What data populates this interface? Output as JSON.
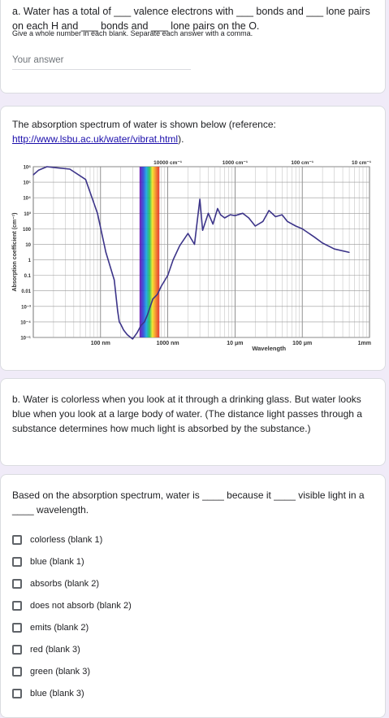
{
  "q1": {
    "title": "a. Water has a total of ___ valence electrons with ___ bonds and ___ lone pairs on each H and ___ bonds and ___ lone pairs on the O.",
    "help": "Give a whole number in each blank. Separate each answer with a comma.",
    "placeholder": "Your answer"
  },
  "q2": {
    "text_before": "The absorption spectrum of water is shown below (reference: ",
    "link": "http://www.lsbu.ac.uk/water/vibrat.html",
    "text_after": ")."
  },
  "chart_data": {
    "type": "line",
    "xlabel": "Wavelength",
    "ylabel": "Absorption coefficient (cm⁻¹)",
    "x_scale": "log",
    "y_scale": "log",
    "x_unit": "m",
    "xlim": [
      1e-08,
      0.001
    ],
    "ylim": [
      1e-05,
      1000000
    ],
    "top_ticks": [
      "10000 cm⁻¹",
      "1000 cm⁻¹",
      "100 cm⁻¹",
      "10 cm⁻¹"
    ],
    "bottom_ticks": [
      "100 nm",
      "1000 nm",
      "10 μm",
      "100 μm",
      "1mm"
    ],
    "y_ticks": [
      "10⁶",
      "10⁵",
      "10⁴",
      "10³",
      "100",
      "10",
      "1",
      "0.1",
      "0.01",
      "10⁻³",
      "10⁻⁴",
      "10⁻⁵"
    ],
    "series": [
      {
        "x": [
          1e-08,
          1.2e-08,
          1.6e-08,
          2e-08,
          3.5e-08,
          6e-08,
          9e-08,
          1.2e-07,
          1.6e-07,
          1.8e-07,
          1.9e-07,
          2e-07,
          2.2e-07,
          2.5e-07,
          3e-07,
          3.5e-07,
          4e-07,
          4.5e-07,
          5e-07,
          6e-07,
          7e-07,
          8e-07,
          1e-06,
          1.2e-06,
          1.5e-06,
          2e-06,
          2.5e-06,
          3e-06,
          3.3e-06,
          4e-06,
          4.7e-06,
          5.5e-06,
          6.1e-06,
          7e-06,
          8.5e-06,
          1e-05,
          1.3e-05,
          1.6e-05,
          2e-05,
          2.6e-05,
          3.2e-05,
          4e-05,
          5e-05,
          6e-05,
          8e-05,
          0.0001,
          0.00015,
          0.0002,
          0.0003,
          0.0005
        ],
        "y": [
          300000,
          600000,
          1000000,
          900000,
          700000,
          150000,
          1000,
          3,
          0.05,
          0.0005,
          0.0001,
          7e-05,
          3e-05,
          1.5e-05,
          8e-06,
          2e-05,
          6e-05,
          0.0001,
          0.0003,
          0.003,
          0.006,
          0.02,
          0.1,
          1,
          8,
          50,
          10,
          8000,
          80,
          1000,
          200,
          2000,
          800,
          500,
          800,
          700,
          1000,
          500,
          150,
          300,
          1500,
          600,
          800,
          300,
          150,
          100,
          30,
          12,
          5,
          3
        ]
      }
    ]
  },
  "q3": {
    "text": "b. Water is colorless when you look at it through a drinking glass. But water looks blue when you look at a large body of water. (The distance light passes through a substance determines how much light is absorbed by the substance.)"
  },
  "q4": {
    "text": "Based on the absorption spectrum, water is ____ because it ____ visible light in a ____ wavelength.",
    "options": [
      "colorless (blank 1)",
      "blue (blank 1)",
      "absorbs (blank 2)",
      "does not absorb (blank 2)",
      "emits (blank 2)",
      "red (blank 3)",
      "green (blank 3)",
      "blue (blank 3)"
    ]
  },
  "colors": {
    "page_bg": "#f0ebf8",
    "line": "#3c3489",
    "link": "#1a0dab"
  }
}
